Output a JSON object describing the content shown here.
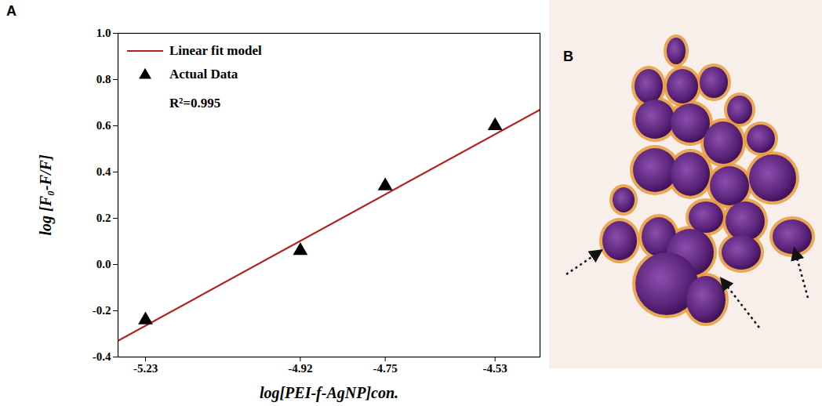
{
  "chart_data": {
    "type": "scatter",
    "panel": "A",
    "x_label": "log[PEI-f-AgNP]con.",
    "y_label": "log [F₀-F/F]",
    "xlim": [
      -5.285,
      -4.44
    ],
    "xticks": [
      -5.23,
      -4.92,
      -4.75,
      -4.53
    ],
    "ylim": [
      -0.4,
      1.0
    ],
    "yticks": [
      -0.4,
      -0.2,
      {
        "value": 0,
        "label": "0.0"
      },
      0.2,
      0.4,
      0.6,
      0.8,
      {
        "value": 1,
        "label": "1.0"
      }
    ],
    "grid": false,
    "legend": "upper left",
    "annotation": "R²=0.995",
    "series": [
      {
        "name": "Linear fit model",
        "type": "line",
        "color": "#b22222",
        "line_style": "solid",
        "x": [
          -5.285,
          -4.44
        ],
        "values": [
          -0.33,
          0.67
        ]
      },
      {
        "name": "Actual Data",
        "type": "scatter",
        "color": "#000000",
        "marker": "triangle",
        "x": [
          -5.23,
          -4.92,
          -4.75,
          -4.53
        ],
        "values": [
          -0.24,
          0.06,
          0.34,
          0.6
        ]
      }
    ]
  },
  "image_panel": {
    "panel": "B"
  }
}
